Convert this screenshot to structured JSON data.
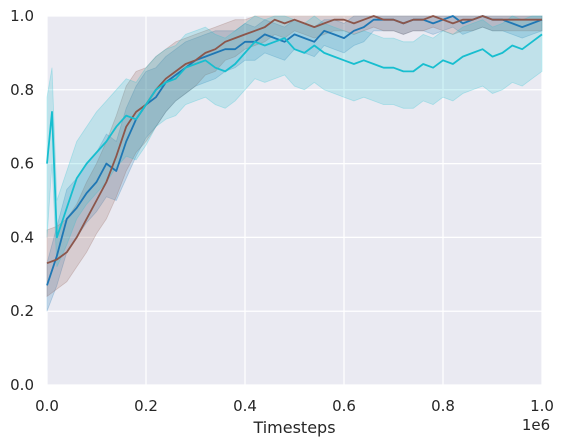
{
  "chart_data": {
    "type": "line",
    "xlabel": "Timesteps",
    "x_offset_label": "1e6",
    "xlim": [
      0,
      1.0
    ],
    "ylim": [
      0,
      1.0
    ],
    "xticks": [
      "0.0",
      "0.2",
      "0.4",
      "0.6",
      "0.8",
      "1.0"
    ],
    "yticks": [
      "0.0",
      "0.2",
      "0.4",
      "0.6",
      "0.8",
      "1.0"
    ],
    "grid": true,
    "colors": {
      "background": "#eaeaf2",
      "grid": "#ffffff",
      "text": "#262626"
    },
    "series": [
      {
        "color": "#1f77b4",
        "x": [
          0,
          0.02,
          0.04,
          0.06,
          0.08,
          0.1,
          0.12,
          0.14,
          0.16,
          0.18,
          0.2,
          0.22,
          0.24,
          0.26,
          0.28,
          0.3,
          0.32,
          0.34,
          0.36,
          0.38,
          0.4,
          0.42,
          0.44,
          0.46,
          0.48,
          0.5,
          0.52,
          0.54,
          0.56,
          0.58,
          0.6,
          0.62,
          0.64,
          0.66,
          0.68,
          0.7,
          0.72,
          0.74,
          0.76,
          0.78,
          0.8,
          0.82,
          0.84,
          0.86,
          0.88,
          0.9,
          0.92,
          0.94,
          0.96,
          0.98,
          1.0
        ],
        "y": [
          0.27,
          0.35,
          0.45,
          0.48,
          0.52,
          0.55,
          0.6,
          0.58,
          0.66,
          0.72,
          0.76,
          0.78,
          0.82,
          0.84,
          0.86,
          0.88,
          0.89,
          0.9,
          0.91,
          0.91,
          0.93,
          0.93,
          0.95,
          0.94,
          0.93,
          0.95,
          0.94,
          0.93,
          0.96,
          0.95,
          0.94,
          0.96,
          0.97,
          0.99,
          0.99,
          0.99,
          0.98,
          0.99,
          0.99,
          0.98,
          0.99,
          1.0,
          0.98,
          0.99,
          1.0,
          0.99,
          0.99,
          0.98,
          0.97,
          0.98,
          0.99
        ],
        "lower": [
          0.2,
          0.27,
          0.36,
          0.4,
          0.44,
          0.47,
          0.51,
          0.5,
          0.56,
          0.62,
          0.67,
          0.7,
          0.74,
          0.77,
          0.79,
          0.81,
          0.82,
          0.83,
          0.85,
          0.86,
          0.88,
          0.88,
          0.9,
          0.89,
          0.88,
          0.91,
          0.9,
          0.89,
          0.92,
          0.91,
          0.9,
          0.92,
          0.93,
          0.96,
          0.96,
          0.96,
          0.95,
          0.96,
          0.96,
          0.95,
          0.96,
          0.97,
          0.95,
          0.96,
          0.97,
          0.96,
          0.96,
          0.95,
          0.94,
          0.95,
          0.96
        ],
        "upper": [
          0.33,
          0.43,
          0.53,
          0.56,
          0.6,
          0.63,
          0.68,
          0.66,
          0.75,
          0.81,
          0.85,
          0.86,
          0.89,
          0.91,
          0.93,
          0.94,
          0.95,
          0.96,
          0.96,
          0.96,
          0.98,
          0.97,
          0.99,
          0.98,
          0.97,
          0.99,
          0.98,
          0.97,
          0.99,
          0.99,
          0.98,
          1.0,
          1.0,
          1.0,
          1.0,
          1.0,
          1.0,
          1.0,
          1.0,
          1.0,
          1.0,
          1.0,
          1.0,
          1.0,
          1.0,
          1.0,
          1.0,
          1.0,
          1.0,
          1.0,
          1.0
        ]
      },
      {
        "color": "#8c564b",
        "x": [
          0,
          0.02,
          0.04,
          0.06,
          0.08,
          0.1,
          0.12,
          0.14,
          0.16,
          0.18,
          0.2,
          0.22,
          0.24,
          0.26,
          0.28,
          0.3,
          0.32,
          0.34,
          0.36,
          0.38,
          0.4,
          0.42,
          0.44,
          0.46,
          0.48,
          0.5,
          0.52,
          0.54,
          0.56,
          0.58,
          0.6,
          0.62,
          0.64,
          0.66,
          0.68,
          0.7,
          0.72,
          0.74,
          0.76,
          0.78,
          0.8,
          0.82,
          0.84,
          0.86,
          0.88,
          0.9,
          0.92,
          0.94,
          0.96,
          0.98,
          1.0
        ],
        "y": [
          0.33,
          0.34,
          0.36,
          0.4,
          0.45,
          0.5,
          0.55,
          0.62,
          0.7,
          0.74,
          0.76,
          0.8,
          0.83,
          0.85,
          0.87,
          0.88,
          0.9,
          0.91,
          0.93,
          0.94,
          0.95,
          0.96,
          0.97,
          0.99,
          0.98,
          0.99,
          0.98,
          0.97,
          0.98,
          0.99,
          0.99,
          0.98,
          0.99,
          1.0,
          0.99,
          0.99,
          0.98,
          0.99,
          0.99,
          1.0,
          0.99,
          0.98,
          0.99,
          0.99,
          1.0,
          0.99,
          0.99,
          0.99,
          0.99,
          0.99,
          0.99
        ],
        "lower": [
          0.24,
          0.26,
          0.28,
          0.32,
          0.36,
          0.41,
          0.45,
          0.51,
          0.58,
          0.63,
          0.66,
          0.7,
          0.74,
          0.77,
          0.79,
          0.81,
          0.84,
          0.85,
          0.88,
          0.89,
          0.91,
          0.92,
          0.93,
          0.95,
          0.94,
          0.96,
          0.95,
          0.94,
          0.95,
          0.96,
          0.96,
          0.95,
          0.96,
          0.97,
          0.96,
          0.96,
          0.95,
          0.96,
          0.96,
          0.97,
          0.96,
          0.95,
          0.96,
          0.96,
          0.97,
          0.96,
          0.96,
          0.96,
          0.96,
          0.96,
          0.96
        ],
        "upper": [
          0.42,
          0.43,
          0.45,
          0.49,
          0.55,
          0.6,
          0.66,
          0.73,
          0.81,
          0.85,
          0.86,
          0.89,
          0.91,
          0.93,
          0.94,
          0.95,
          0.96,
          0.97,
          0.98,
          0.99,
          0.99,
          1.0,
          1.0,
          1.0,
          1.0,
          1.0,
          1.0,
          1.0,
          1.0,
          1.0,
          1.0,
          1.0,
          1.0,
          1.0,
          1.0,
          1.0,
          1.0,
          1.0,
          1.0,
          1.0,
          1.0,
          1.0,
          1.0,
          1.0,
          1.0,
          1.0,
          1.0,
          1.0,
          1.0,
          1.0,
          1.0
        ]
      },
      {
        "color": "#17becf",
        "x": [
          0,
          0.01,
          0.02,
          0.04,
          0.06,
          0.08,
          0.1,
          0.12,
          0.14,
          0.16,
          0.18,
          0.2,
          0.22,
          0.24,
          0.26,
          0.28,
          0.3,
          0.32,
          0.34,
          0.36,
          0.38,
          0.4,
          0.42,
          0.44,
          0.46,
          0.48,
          0.5,
          0.52,
          0.54,
          0.56,
          0.58,
          0.6,
          0.62,
          0.64,
          0.66,
          0.68,
          0.7,
          0.72,
          0.74,
          0.76,
          0.78,
          0.8,
          0.82,
          0.84,
          0.86,
          0.88,
          0.9,
          0.92,
          0.94,
          0.96,
          0.98,
          1.0
        ],
        "y": [
          0.6,
          0.74,
          0.4,
          0.48,
          0.56,
          0.6,
          0.63,
          0.66,
          0.7,
          0.73,
          0.72,
          0.76,
          0.8,
          0.82,
          0.83,
          0.86,
          0.87,
          0.88,
          0.86,
          0.85,
          0.87,
          0.9,
          0.93,
          0.92,
          0.93,
          0.94,
          0.91,
          0.9,
          0.92,
          0.9,
          0.89,
          0.88,
          0.87,
          0.88,
          0.87,
          0.86,
          0.86,
          0.85,
          0.85,
          0.87,
          0.86,
          0.88,
          0.87,
          0.89,
          0.9,
          0.91,
          0.89,
          0.9,
          0.92,
          0.91,
          0.93,
          0.95
        ],
        "lower": [
          0.4,
          0.6,
          0.32,
          0.38,
          0.45,
          0.49,
          0.52,
          0.55,
          0.59,
          0.62,
          0.61,
          0.65,
          0.7,
          0.72,
          0.73,
          0.76,
          0.77,
          0.78,
          0.76,
          0.75,
          0.77,
          0.8,
          0.83,
          0.82,
          0.83,
          0.84,
          0.81,
          0.8,
          0.82,
          0.8,
          0.79,
          0.78,
          0.77,
          0.78,
          0.77,
          0.76,
          0.76,
          0.75,
          0.75,
          0.77,
          0.76,
          0.78,
          0.77,
          0.79,
          0.8,
          0.81,
          0.79,
          0.8,
          0.82,
          0.81,
          0.83,
          0.85
        ],
        "upper": [
          0.78,
          0.86,
          0.5,
          0.58,
          0.66,
          0.7,
          0.74,
          0.77,
          0.8,
          0.83,
          0.82,
          0.86,
          0.89,
          0.91,
          0.92,
          0.95,
          0.96,
          0.97,
          0.95,
          0.94,
          0.96,
          0.98,
          1.0,
          0.99,
          1.0,
          1.0,
          0.99,
          0.98,
          1.0,
          0.98,
          0.97,
          0.96,
          0.95,
          0.96,
          0.95,
          0.94,
          0.94,
          0.93,
          0.93,
          0.95,
          0.94,
          0.96,
          0.95,
          0.97,
          0.98,
          0.99,
          0.97,
          0.98,
          1.0,
          0.99,
          1.0,
          1.0
        ]
      }
    ]
  }
}
